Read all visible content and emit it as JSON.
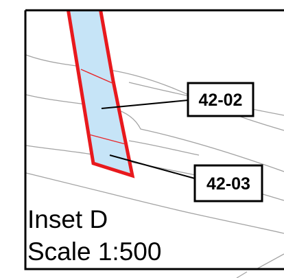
{
  "inset": {
    "title": "Inset D",
    "scale": "Scale 1:500"
  },
  "lots": [
    {
      "label": "42-02"
    },
    {
      "label": "42-03"
    }
  ],
  "colors": {
    "parcel_fill": "#c6e4f7",
    "parcel_outline": "#e8191d",
    "contour": "#a3a3a3",
    "frame": "#000000"
  }
}
